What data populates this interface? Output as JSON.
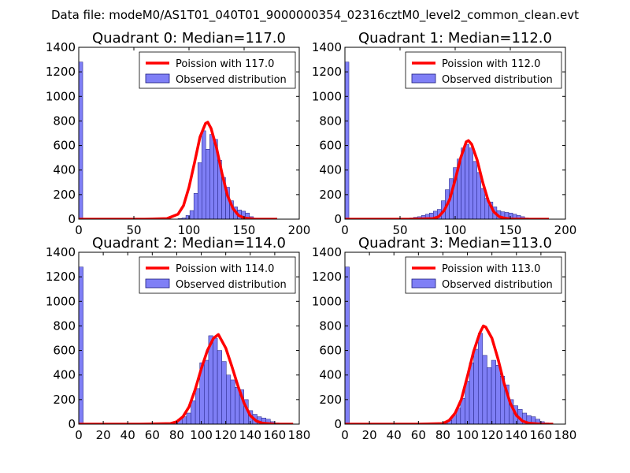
{
  "figure_title": "Data file: modeM0/AS1T01_040T01_9000000354_02316cztM0_level2_common_clean.evt",
  "colors": {
    "bars": "#7f7ff6",
    "bar_edge": "#1c1c7e",
    "poisson": "#ff0000"
  },
  "chart_data": [
    {
      "type": "bar",
      "title": "Quadrant 0: Median=117.0",
      "legend": [
        "Poission with 117.0",
        "Observed distribution"
      ],
      "legend_position": "top-right",
      "xlim": [
        0,
        200
      ],
      "ylim": [
        0,
        1400
      ],
      "xticks": [
        0,
        50,
        100,
        150,
        200
      ],
      "yticks": [
        0,
        200,
        400,
        600,
        800,
        1000,
        1200,
        1400
      ],
      "bar_width": 3.6,
      "bars": {
        "x": [
          0,
          90,
          93.6,
          97.2,
          100.8,
          104.4,
          108,
          111.6,
          115.2,
          118.8,
          122.4,
          126,
          129.6,
          133.2,
          136.8,
          140.4,
          144,
          147.6,
          151.2,
          154.8,
          158.4,
          162
        ],
        "values": [
          1280,
          5,
          10,
          30,
          70,
          210,
          460,
          720,
          570,
          690,
          650,
          480,
          340,
          260,
          150,
          100,
          75,
          65,
          50,
          20,
          8,
          3
        ]
      },
      "curve": {
        "x": [
          0,
          60,
          80,
          90,
          95,
          100,
          105,
          110,
          115,
          117,
          120,
          125,
          130,
          135,
          140,
          145,
          150,
          160,
          180
        ],
        "values": [
          0,
          0,
          5,
          40,
          110,
          260,
          460,
          670,
          780,
          790,
          740,
          580,
          370,
          190,
          85,
          30,
          10,
          0,
          0
        ]
      }
    },
    {
      "type": "bar",
      "title": "Quadrant 1: Median=112.0",
      "legend": [
        "Poission with 112.0",
        "Observed distribution"
      ],
      "legend_position": "top-right",
      "xlim": [
        0,
        200
      ],
      "ylim": [
        0,
        1400
      ],
      "xticks": [
        0,
        50,
        100,
        150,
        200
      ],
      "yticks": [
        0,
        200,
        400,
        600,
        800,
        1000,
        1200,
        1400
      ],
      "bar_width": 3.6,
      "bars": {
        "x": [
          0,
          55,
          58.6,
          62.2,
          65.8,
          69.4,
          73,
          76.6,
          80.2,
          83.8,
          87.4,
          91,
          94.6,
          98.2,
          101.8,
          105.4,
          109,
          112.6,
          116.2,
          119.8,
          123.4,
          127,
          130.6,
          134.2,
          137.8,
          141.4,
          145,
          148.6,
          152.2,
          155.8,
          159.4,
          163,
          166.6,
          170.2,
          173.8,
          177.4
        ],
        "values": [
          1280,
          5,
          10,
          15,
          20,
          30,
          40,
          50,
          65,
          80,
          150,
          240,
          330,
          420,
          490,
          580,
          610,
          580,
          470,
          380,
          250,
          170,
          140,
          100,
          70,
          60,
          55,
          50,
          40,
          30,
          20,
          10,
          5,
          5,
          3,
          2
        ]
      },
      "curve": {
        "x": [
          0,
          60,
          80,
          85,
          90,
          95,
          100,
          105,
          110,
          112,
          115,
          120,
          125,
          130,
          135,
          140,
          145,
          150,
          160,
          185
        ],
        "values": [
          0,
          0,
          5,
          20,
          70,
          160,
          320,
          500,
          630,
          640,
          610,
          480,
          300,
          150,
          60,
          20,
          8,
          2,
          0,
          0
        ]
      }
    },
    {
      "type": "bar",
      "title": "Quadrant 2: Median=114.0",
      "legend": [
        "Poission with 114.0",
        "Observed distribution"
      ],
      "legend_position": "top-right",
      "xlim": [
        0,
        180
      ],
      "ylim": [
        0,
        1400
      ],
      "xticks": [
        0,
        20,
        40,
        60,
        80,
        100,
        120,
        140,
        160,
        180
      ],
      "yticks": [
        0,
        200,
        400,
        600,
        800,
        1000,
        1200,
        1400
      ],
      "bar_width": 3.6,
      "bars": {
        "x": [
          0,
          70,
          73.6,
          77.2,
          80.8,
          84.4,
          88,
          91.6,
          95.2,
          98.8,
          102.4,
          106,
          109.6,
          113.2,
          116.8,
          120.4,
          124,
          127.6,
          131.2,
          134.8,
          138.4,
          142,
          145.6,
          149.2,
          152.8,
          156.4,
          160
        ],
        "values": [
          1280,
          5,
          10,
          20,
          40,
          60,
          90,
          190,
          290,
          500,
          520,
          720,
          700,
          600,
          510,
          400,
          360,
          300,
          280,
          200,
          110,
          80,
          60,
          50,
          40,
          20,
          10
        ]
      },
      "curve": {
        "x": [
          0,
          50,
          75,
          80,
          85,
          90,
          95,
          100,
          105,
          110,
          114,
          120,
          125,
          130,
          135,
          140,
          145,
          150,
          160,
          175
        ],
        "values": [
          0,
          0,
          5,
          20,
          60,
          140,
          280,
          450,
          600,
          700,
          730,
          620,
          470,
          310,
          170,
          70,
          25,
          8,
          0,
          0
        ]
      }
    },
    {
      "type": "bar",
      "title": "Quadrant 3: Median=113.0",
      "legend": [
        "Poission with 113.0",
        "Observed distribution"
      ],
      "legend_position": "top-right",
      "xlim": [
        0,
        180
      ],
      "ylim": [
        0,
        1400
      ],
      "xticks": [
        0,
        20,
        40,
        60,
        80,
        100,
        120,
        140,
        160,
        180
      ],
      "yticks": [
        0,
        200,
        400,
        600,
        800,
        1000,
        1200,
        1400
      ],
      "bar_width": 3.6,
      "bars": {
        "x": [
          0,
          80,
          83.6,
          87.2,
          90.8,
          94.4,
          98,
          101.6,
          105.2,
          108.8,
          112.4,
          116,
          119.6,
          123.2,
          126.8,
          130.4,
          134,
          137.6,
          141.2,
          144.8,
          148.4,
          152,
          155.6,
          159.2,
          162.8
        ],
        "values": [
          1280,
          10,
          30,
          70,
          130,
          210,
          350,
          500,
          610,
          740,
          560,
          460,
          520,
          480,
          390,
          320,
          200,
          150,
          120,
          90,
          70,
          60,
          40,
          20,
          10
        ]
      },
      "curve": {
        "x": [
          0,
          60,
          80,
          85,
          90,
          95,
          100,
          105,
          110,
          113,
          115,
          120,
          125,
          130,
          135,
          140,
          145,
          150,
          160,
          170
        ],
        "values": [
          0,
          0,
          5,
          30,
          90,
          200,
          390,
          590,
          740,
          800,
          790,
          700,
          530,
          330,
          170,
          70,
          25,
          8,
          0,
          0
        ]
      }
    }
  ]
}
